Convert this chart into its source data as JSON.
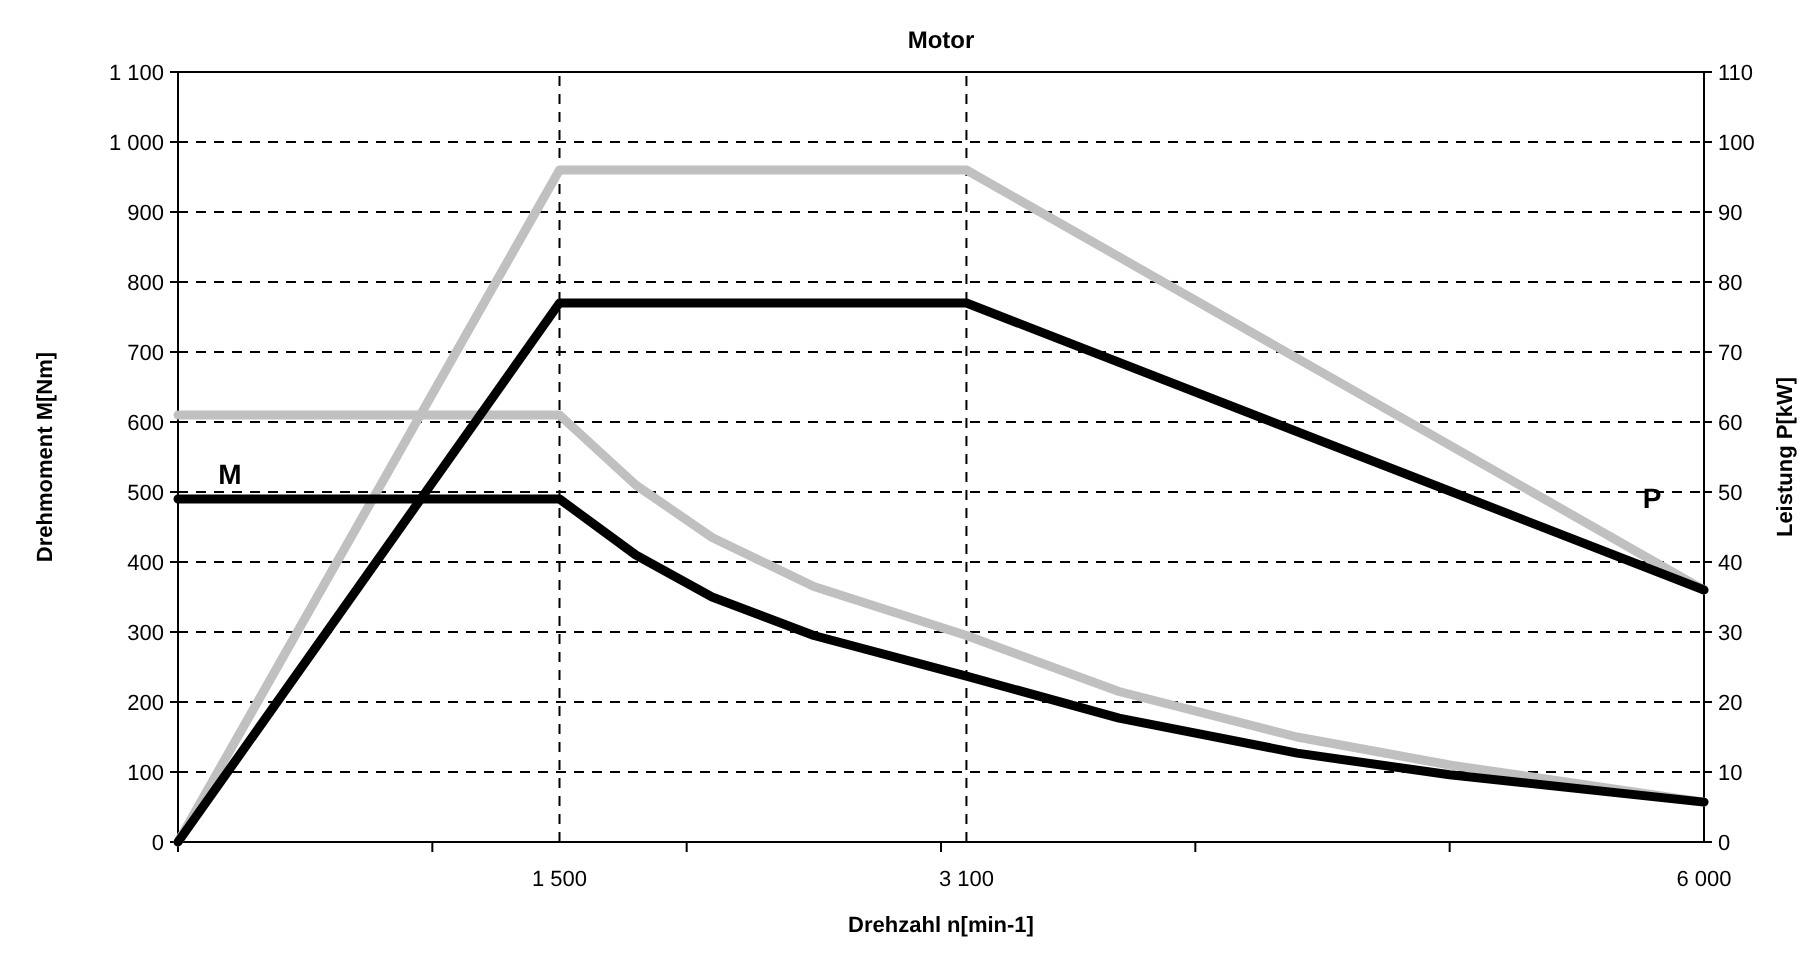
{
  "chart_data": {
    "type": "line",
    "title": "Motor",
    "xlabel": "Drehzahl n[min-1]",
    "ylabel": "Drehmoment M[Nm]",
    "y2label": "Leistung P[kW]",
    "xlim": [
      0,
      6000
    ],
    "xticks": [
      {
        "value": 0,
        "label": null
      },
      {
        "value": 1000,
        "label": null
      },
      {
        "value": 1500,
        "label": "1 500"
      },
      {
        "value": 2000,
        "label": null
      },
      {
        "value": 3000,
        "label": null
      },
      {
        "value": 3100,
        "label": "3 100"
      },
      {
        "value": 4000,
        "label": null
      },
      {
        "value": 5000,
        "label": null
      },
      {
        "value": 6000,
        "label": "6 000"
      }
    ],
    "ylim": [
      0,
      1100
    ],
    "yticks": [
      0,
      100,
      200,
      300,
      400,
      500,
      600,
      700,
      800,
      900,
      {
        "value": 1000,
        "label": "1 000"
      },
      {
        "value": 1100,
        "label": "1 100"
      }
    ],
    "y2lim": [
      0,
      110
    ],
    "y2ticks": [
      0,
      10,
      20,
      30,
      40,
      50,
      60,
      70,
      80,
      90,
      100,
      110
    ],
    "grid": "y",
    "marker": "none",
    "line_style": "solid",
    "ref_lines": [
      {
        "axis": "x",
        "value": 1500,
        "line_style": "dashed",
        "color": "#000000"
      },
      {
        "axis": "x",
        "value": 3100,
        "line_style": "dashed",
        "color": "#000000"
      }
    ],
    "annotations": [
      "M",
      "P"
    ],
    "series": [
      {
        "color": "#c0c0c0",
        "x": [
          0,
          1500,
          3100,
          6000
        ],
        "values": [
          0,
          96,
          96,
          36
        ],
        "axis": "y2"
      },
      {
        "color": "#c0c0c0",
        "x": [
          0,
          1500,
          1800,
          2100,
          2500,
          3100,
          3700,
          4400,
          5000,
          6000
        ],
        "values": [
          610,
          610,
          510,
          435,
          365,
          295,
          215,
          150,
          110,
          57
        ]
      },
      {
        "color": "#000000",
        "x": [
          0,
          1500,
          3100,
          6000
        ],
        "values": [
          0,
          77,
          77,
          36
        ],
        "axis": "y2"
      },
      {
        "color": "#000000",
        "x": [
          0,
          1500,
          1800,
          2100,
          2500,
          3100,
          3700,
          4400,
          5000,
          6000
        ],
        "values": [
          490,
          490,
          410,
          350,
          295,
          237,
          177,
          127,
          96,
          57
        ]
      }
    ]
  }
}
